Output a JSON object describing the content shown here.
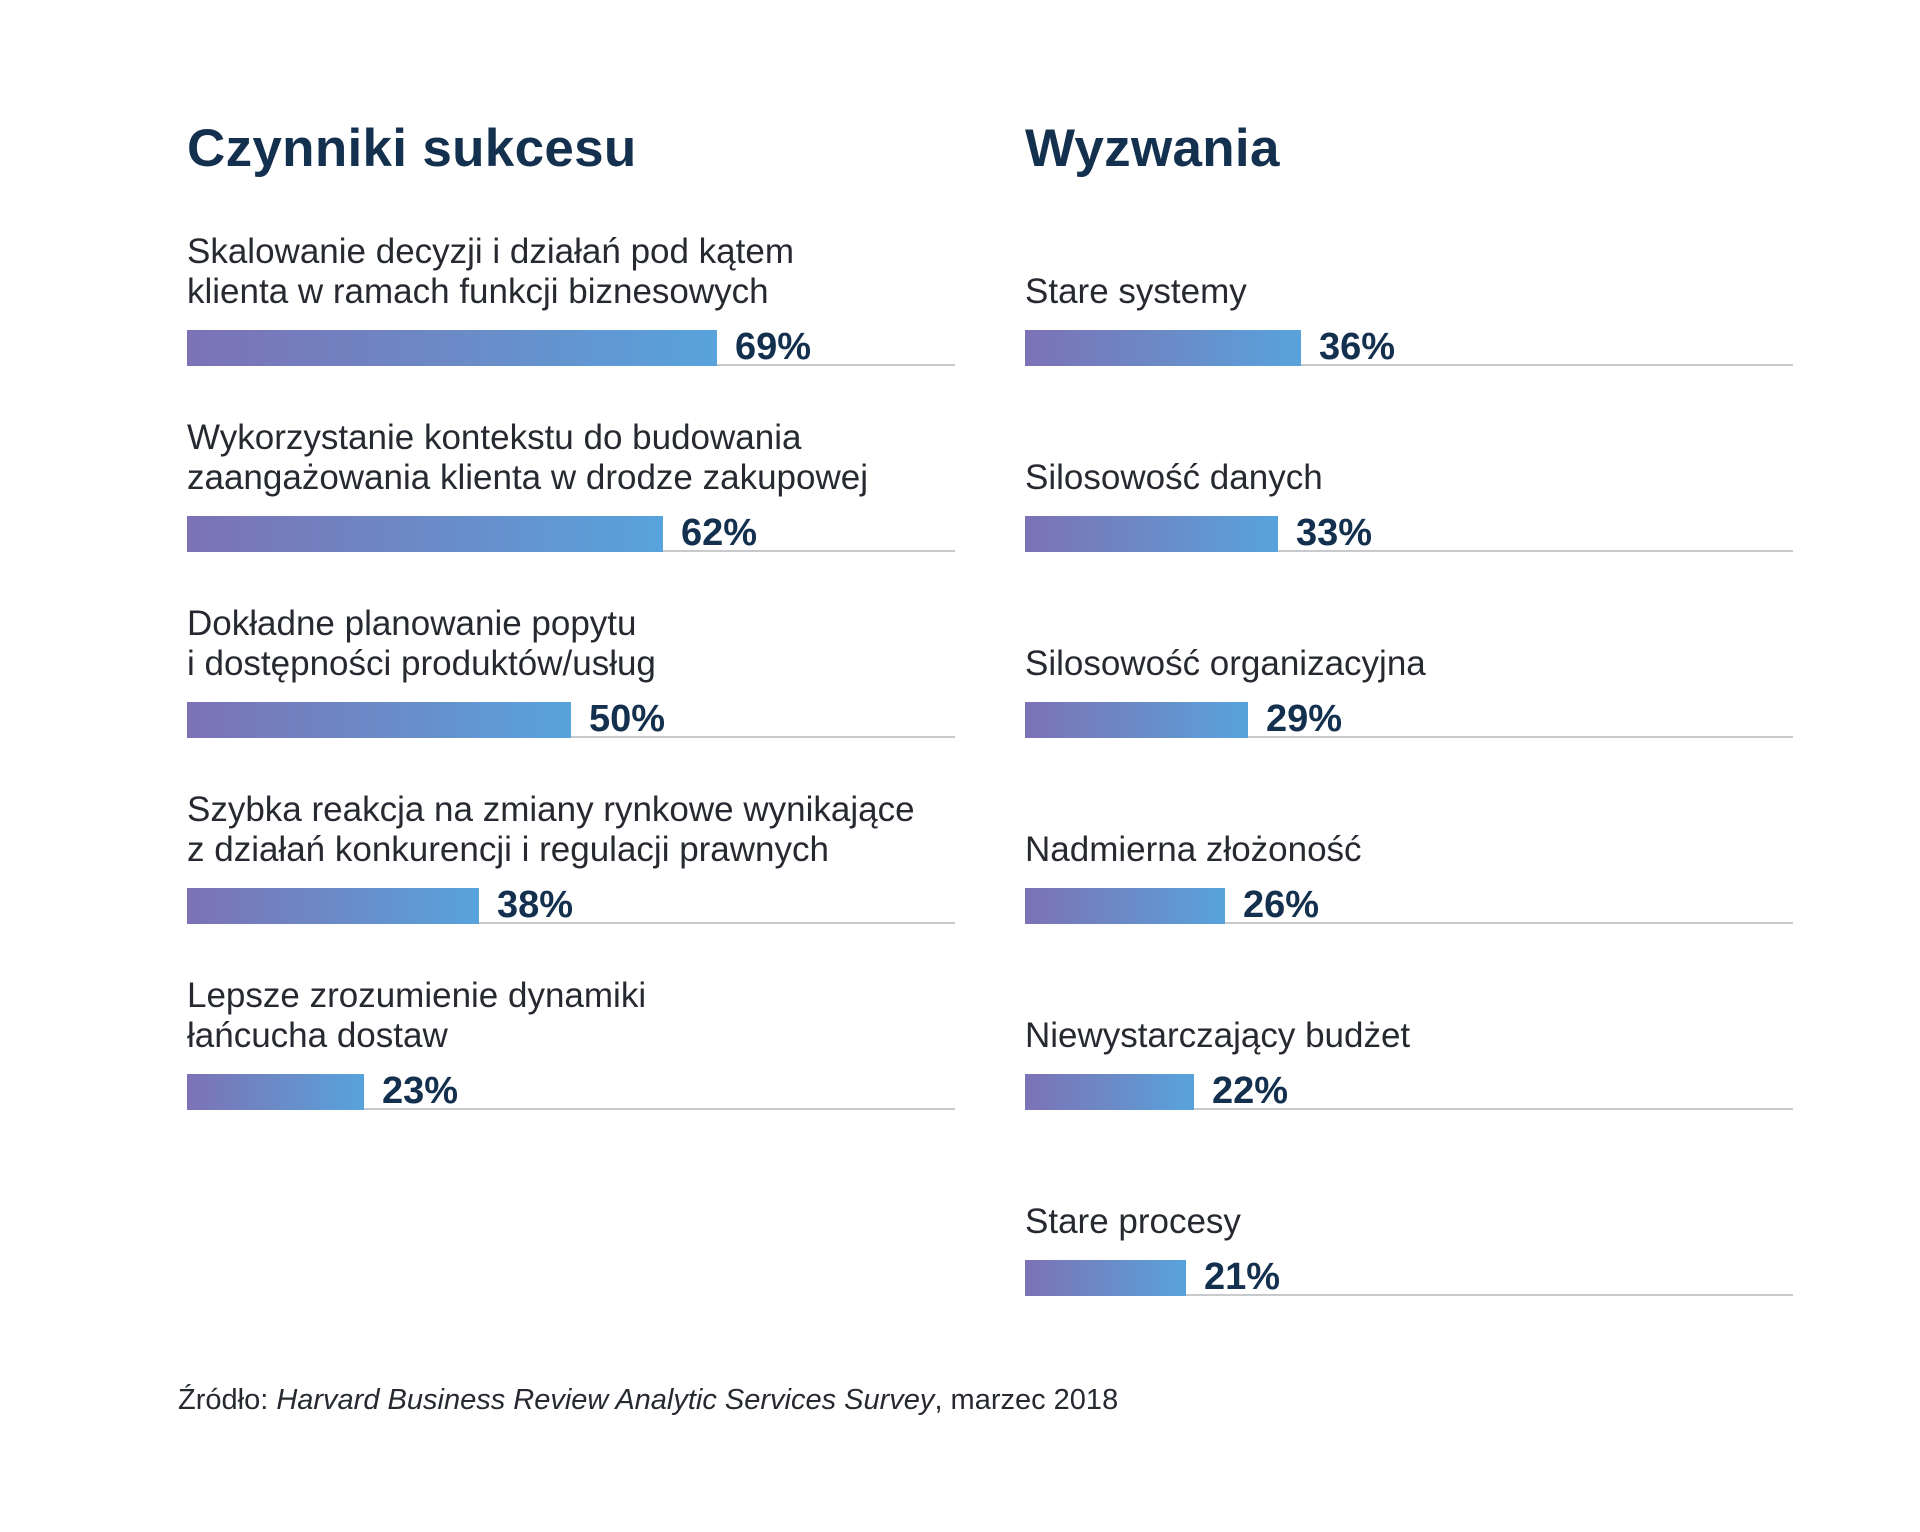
{
  "chart_data": [
    {
      "type": "bar",
      "orientation": "horizontal",
      "title": "Czynniki sukcesu",
      "categories": [
        "Skalowanie decyzji i działań pod kątem\nklienta w ramach funkcji biznesowych",
        "Wykorzystanie kontekstu do budowania\nzaangażowania klienta w drodze zakupowej",
        "Dokładne planowanie popytu\ni dostępności produktów/usług",
        "Szybka reakcja na zmiany rynkowe wynikające\nz działań konkurencji i regulacji prawnych",
        "Lepsze zrozumienie dynamiki\nłańcucha dostaw"
      ],
      "values": [
        69,
        62,
        50,
        38,
        23
      ],
      "value_labels": [
        "69%",
        "62%",
        "50%",
        "38%",
        "23%"
      ],
      "xlim": [
        0,
        100
      ],
      "grid": false
    },
    {
      "type": "bar",
      "orientation": "horizontal",
      "title": "Wyzwania",
      "categories": [
        "Stare systemy",
        "Silosowość danych",
        "Silosowość organizacyjna",
        "Nadmierna złożoność",
        "Niewystarczający budżet",
        "Stare procesy"
      ],
      "values": [
        36,
        33,
        29,
        26,
        22,
        21
      ],
      "value_labels": [
        "36%",
        "33%",
        "29%",
        "26%",
        "22%",
        "21%"
      ],
      "xlim": [
        0,
        100
      ],
      "grid": false
    }
  ],
  "footnote": {
    "prefix": "Źródło: ",
    "source": "Harvard Business Review Analytic Services Survey",
    "suffix": ", marzec 2018"
  },
  "colors": {
    "title": "#14304f",
    "text": "#262a30",
    "bar_gradient_start": "#7c72b6",
    "bar_gradient_end": "#58a3dc",
    "track": "#c7c9cc"
  }
}
